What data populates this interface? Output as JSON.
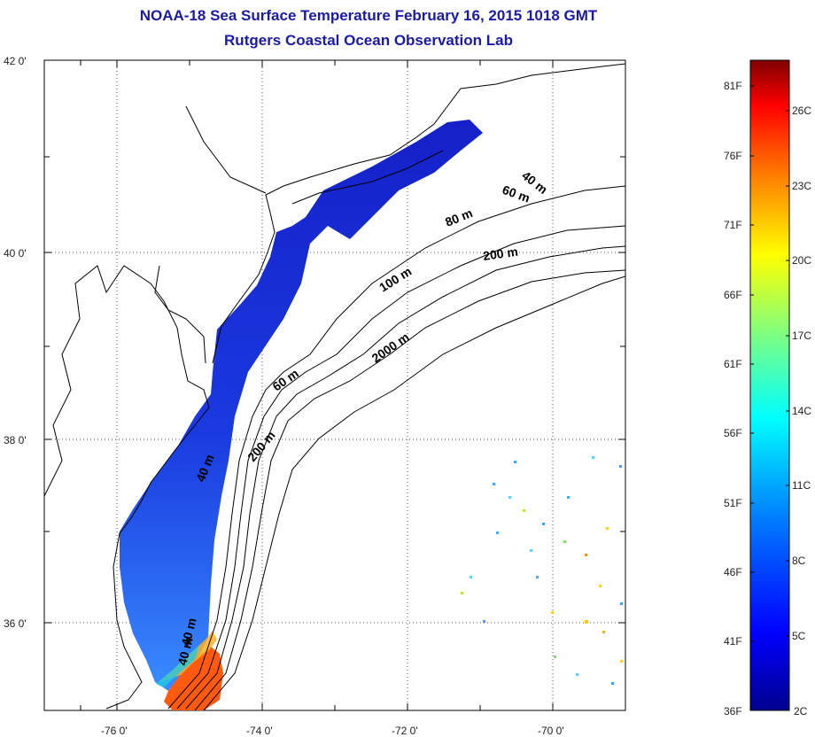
{
  "title": {
    "line1": "NOAA-18 Sea Surface Temperature February 16, 2015 1018 GMT",
    "line2": "Rutgers Coastal Ocean Observation Lab"
  },
  "axes": {
    "x_ticks": [
      "-76 0'",
      "-74 0'",
      "-72 0'",
      "-70 0'"
    ],
    "y_ticks": [
      "42 0'",
      "40 0'",
      "38 0'",
      "36 0'"
    ]
  },
  "contour_labels": [
    "40 m",
    "60 m",
    "80 m",
    "200 m",
    "100 m",
    "2000 m",
    "60 m",
    "40 m",
    "200 m",
    "40 m",
    "40 m"
  ],
  "colorbar": {
    "fahrenheit": [
      "81F",
      "76F",
      "71F",
      "66F",
      "61F",
      "56F",
      "51F",
      "46F",
      "41F",
      "36F"
    ],
    "celsius": [
      "26C",
      "23C",
      "20C",
      "17C",
      "14C",
      "11C",
      "8C",
      "5C",
      "2C"
    ],
    "gradient_colors": [
      "#00008f",
      "#0000ff",
      "#0080ff",
      "#00ffff",
      "#80ff80",
      "#ffff00",
      "#ff8000",
      "#ff0000",
      "#800000"
    ]
  },
  "colors": {
    "title": "#1a1aa6",
    "sst_cold": "#1a2ad8",
    "sst_warm": "#ff4a10"
  }
}
